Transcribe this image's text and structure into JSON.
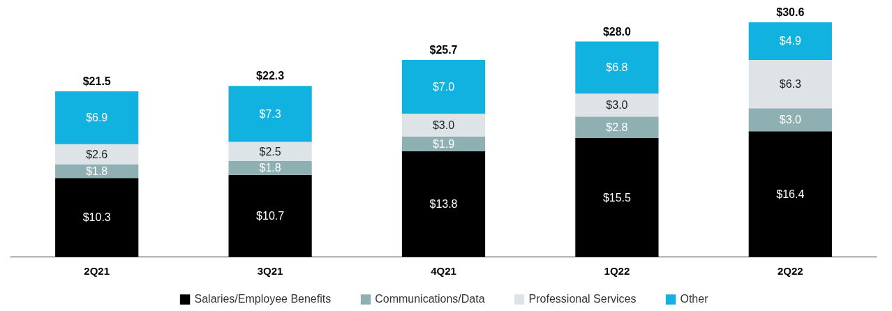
{
  "chart_data": {
    "type": "bar",
    "stacked": true,
    "categories": [
      "2Q21",
      "3Q21",
      "4Q21",
      "1Q22",
      "2Q22"
    ],
    "series": [
      {
        "name": "Salaries/Employee Benefits",
        "color": "#000000",
        "values": [
          10.3,
          10.7,
          13.8,
          15.5,
          16.4
        ],
        "value_labels": [
          "$10.3",
          "$10.7",
          "$13.8",
          "$15.5",
          "$16.4"
        ]
      },
      {
        "name": "Communications/Data",
        "color": "#8fb0b3",
        "values": [
          1.8,
          1.8,
          1.9,
          2.8,
          3.0
        ],
        "value_labels": [
          "$1.8",
          "$1.8",
          "$1.9",
          "$2.8",
          "$3.0"
        ]
      },
      {
        "name": "Professional Services",
        "color": "#dde3e6",
        "values": [
          2.6,
          2.5,
          3.0,
          3.0,
          6.3
        ],
        "value_labels": [
          "$2.6",
          "$2.5",
          "$3.0",
          "$3.0",
          "$6.3"
        ]
      },
      {
        "name": "Other",
        "color": "#12b2e0",
        "values": [
          6.9,
          7.3,
          7.0,
          6.8,
          4.9
        ],
        "value_labels": [
          "$6.9",
          "$7.3",
          "$7.0",
          "$6.8",
          "$4.9"
        ]
      }
    ],
    "totals": [
      "$21.5",
      "$22.3",
      "$25.7",
      "$28.0",
      "$30.6"
    ],
    "legend": "bottom",
    "grid": false
  }
}
